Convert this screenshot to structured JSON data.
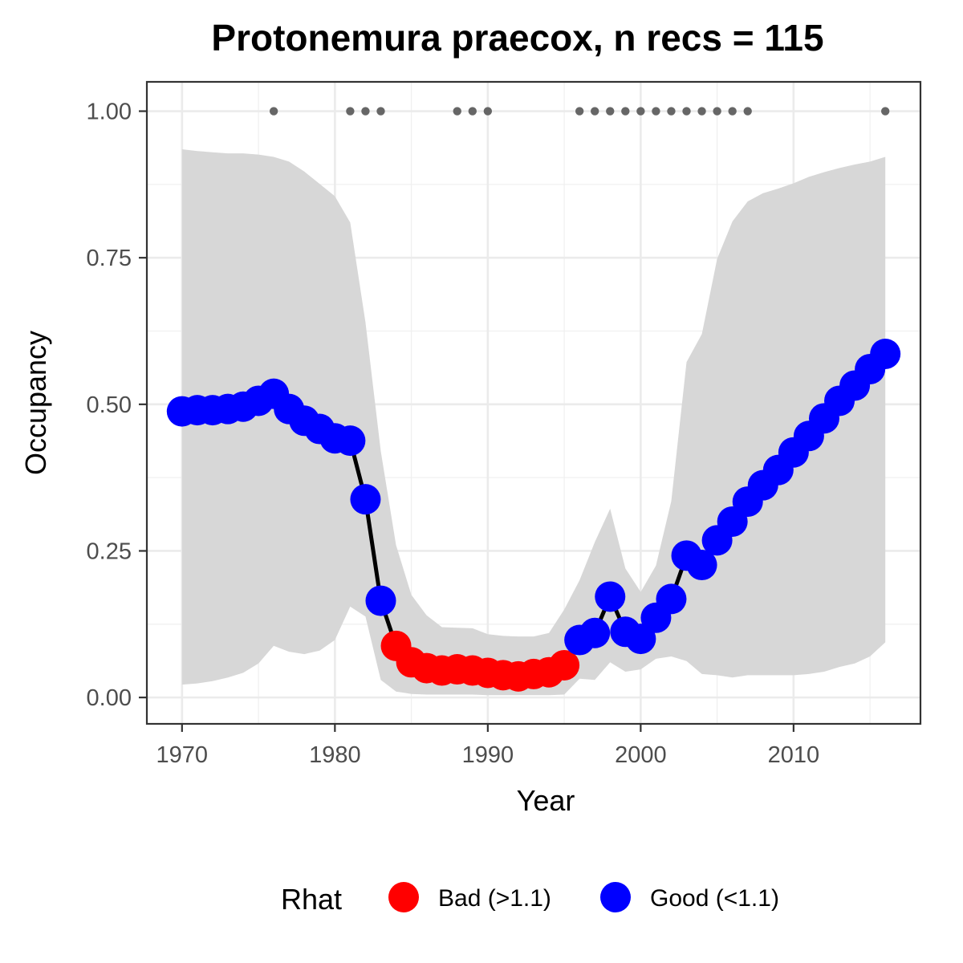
{
  "chart_data": {
    "type": "line",
    "title": "Protonemura praecox, n recs = 115",
    "xlabel": "Year",
    "ylabel": "Occupancy",
    "xlim": [
      1967.7,
      2018.3
    ],
    "ylim": [
      -0.045,
      1.05
    ],
    "x_ticks": [
      1970,
      1980,
      1990,
      2000,
      2010
    ],
    "x_tick_labels": [
      "1970",
      "1980",
      "1990",
      "2000",
      "2010"
    ],
    "y_ticks": [
      0,
      0.25,
      0.5,
      0.75,
      1.0
    ],
    "y_tick_labels": [
      "0.00",
      "0.25",
      "0.50",
      "0.75",
      "1.00"
    ],
    "grid": true,
    "legend": {
      "title": "Rhat",
      "position": "bottom",
      "entries": [
        {
          "label": "Bad (>1.1)",
          "color": "#ff0000"
        },
        {
          "label": "Good (<1.1)",
          "color": "#0000ff"
        }
      ]
    },
    "colors": {
      "bad": "#ff0000",
      "good": "#0000ff",
      "line": "#000000",
      "ribbon": "#d7d7d7",
      "record_dots": "#666666"
    },
    "x": [
      1970,
      1971,
      1972,
      1973,
      1974,
      1975,
      1976,
      1977,
      1978,
      1979,
      1980,
      1981,
      1982,
      1983,
      1984,
      1985,
      1986,
      1987,
      1988,
      1989,
      1990,
      1991,
      1992,
      1993,
      1994,
      1995,
      1996,
      1997,
      1998,
      1999,
      2000,
      2001,
      2002,
      2003,
      2004,
      2005,
      2006,
      2007,
      2008,
      2009,
      2010,
      2011,
      2012,
      2013,
      2014,
      2015,
      2016
    ],
    "occupancy": [
      0.488,
      0.49,
      0.49,
      0.492,
      0.496,
      0.506,
      0.518,
      0.492,
      0.472,
      0.458,
      0.442,
      0.438,
      0.338,
      0.165,
      0.088,
      0.06,
      0.05,
      0.046,
      0.048,
      0.046,
      0.042,
      0.038,
      0.036,
      0.04,
      0.043,
      0.055,
      0.098,
      0.11,
      0.172,
      0.112,
      0.1,
      0.136,
      0.168,
      0.242,
      0.226,
      0.268,
      0.3,
      0.334,
      0.362,
      0.388,
      0.418,
      0.446,
      0.476,
      0.506,
      0.532,
      0.56,
      0.586
    ],
    "rhat": [
      "Good",
      "Good",
      "Good",
      "Good",
      "Good",
      "Good",
      "Good",
      "Good",
      "Good",
      "Good",
      "Good",
      "Good",
      "Good",
      "Good",
      "Bad",
      "Bad",
      "Bad",
      "Bad",
      "Bad",
      "Bad",
      "Bad",
      "Bad",
      "Bad",
      "Bad",
      "Bad",
      "Bad",
      "Good",
      "Good",
      "Good",
      "Good",
      "Good",
      "Good",
      "Good",
      "Good",
      "Good",
      "Good",
      "Good",
      "Good",
      "Good",
      "Good",
      "Good",
      "Good",
      "Good",
      "Good",
      "Good",
      "Good",
      "Good"
    ],
    "lower": [
      0.022,
      0.024,
      0.028,
      0.034,
      0.042,
      0.058,
      0.088,
      0.078,
      0.074,
      0.08,
      0.098,
      0.155,
      0.138,
      0.03,
      0.01,
      0.006,
      0.005,
      0.005,
      0.005,
      0.005,
      0.004,
      0.004,
      0.004,
      0.004,
      0.004,
      0.005,
      0.032,
      0.03,
      0.06,
      0.044,
      0.048,
      0.066,
      0.07,
      0.062,
      0.04,
      0.038,
      0.034,
      0.038,
      0.038,
      0.038,
      0.038,
      0.04,
      0.044,
      0.052,
      0.058,
      0.07,
      0.094
    ],
    "upper": [
      0.935,
      0.932,
      0.93,
      0.928,
      0.928,
      0.926,
      0.922,
      0.914,
      0.897,
      0.876,
      0.855,
      0.81,
      0.64,
      0.42,
      0.26,
      0.175,
      0.14,
      0.12,
      0.119,
      0.118,
      0.108,
      0.105,
      0.104,
      0.104,
      0.11,
      0.15,
      0.2,
      0.265,
      0.322,
      0.22,
      0.18,
      0.225,
      0.335,
      0.572,
      0.62,
      0.748,
      0.812,
      0.846,
      0.86,
      0.868,
      0.877,
      0.888,
      0.896,
      0.903,
      0.909,
      0.914,
      0.922
    ],
    "record_years": [
      1976,
      1981,
      1982,
      1983,
      1988,
      1989,
      1990,
      1996,
      1997,
      1998,
      1999,
      2000,
      2001,
      2002,
      2003,
      2004,
      2005,
      2006,
      2007,
      2016
    ],
    "record_y": 1.0
  }
}
